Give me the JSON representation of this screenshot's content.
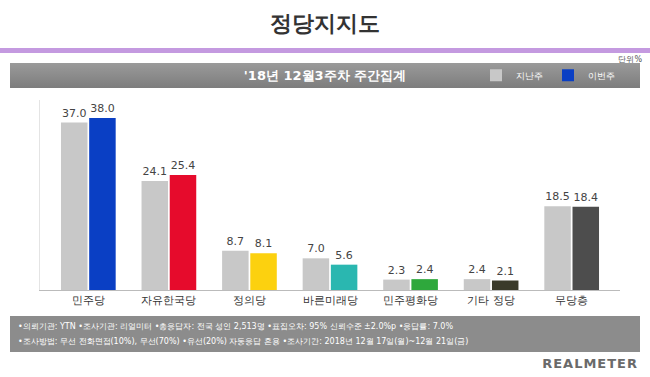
{
  "chart_data": {
    "type": "bar",
    "title": "정당지지도",
    "subtitle": "'18년 12월3주차 주간집계",
    "categories": [
      "민주당",
      "자유한국당",
      "정의당",
      "바른미래당",
      "민주평화당",
      "기타 정당",
      "무당층"
    ],
    "series": [
      {
        "name": "지난주",
        "color": "#c8c8c8",
        "values": [
          37.0,
          24.1,
          8.7,
          7.0,
          2.3,
          2.4,
          18.5
        ],
        "value_labels": [
          "37.0",
          "24.1",
          "8.7",
          "7.0",
          "2.3",
          "2.4",
          "18.5"
        ]
      },
      {
        "name": "이번주",
        "colors": [
          "#0a3fc4",
          "#e60b2c",
          "#fcd10f",
          "#2ab7b0",
          "#2ea83c",
          "#3a3a2a",
          "#4d4d4d"
        ],
        "values": [
          38.0,
          25.4,
          8.1,
          5.6,
          2.4,
          2.1,
          18.4
        ],
        "value_labels": [
          "38.0",
          "25.4",
          "8.1",
          "5.6",
          "2.4",
          "2.1",
          "18.4"
        ]
      }
    ],
    "ylim": [
      0,
      42
    ],
    "yticks": [],
    "tick_labels": "x",
    "grid": false,
    "legend": "top right",
    "data_labels": true,
    "annotations": {
      "unit": "단위%",
      "notes": [
        "•의뢰기관: YTN •조사기관: 리얼미터 •총응답자: 전국 성인 2,513명 •표집오차: 95% 신뢰수준 ±2.0%p •응답률: 7.0%",
        "•조사방법: 무선 전화면접(10%), 무선(70%) •유선(20%) 자동응답 혼용 •조사기간: 2018년 12월 17일(월)~12월 21일(금)"
      ],
      "source": "REALMETER"
    }
  }
}
